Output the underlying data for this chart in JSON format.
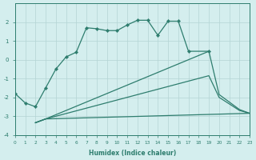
{
  "xlabel": "Humidex (Indice chaleur)",
  "color": "#2e7d6e",
  "bg_color": "#d4eeee",
  "grid_color": "#b4d4d4",
  "ylim": [
    -4,
    3
  ],
  "xlim": [
    0,
    23
  ],
  "line_upper_x": [
    0,
    1,
    2,
    3,
    4,
    5,
    6,
    7,
    8,
    9,
    10,
    11,
    12,
    13,
    14,
    15,
    16,
    17,
    19
  ],
  "line_upper_y": [
    -1.8,
    -2.3,
    -2.5,
    -1.5,
    -0.5,
    0.15,
    0.4,
    1.7,
    1.65,
    1.55,
    1.55,
    1.85,
    2.1,
    2.1,
    1.3,
    2.05,
    2.05,
    0.45,
    0.45
  ],
  "fan_line1_x": [
    2,
    3,
    19,
    20,
    22,
    23
  ],
  "fan_line1_y": [
    -3.35,
    -3.15,
    0.45,
    -1.85,
    -2.65,
    -2.85
  ],
  "fan_line2_x": [
    2,
    3,
    19,
    20,
    22,
    23
  ],
  "fan_line2_y": [
    -3.35,
    -3.15,
    -0.85,
    -2.0,
    -2.7,
    -2.85
  ],
  "fan_line3_x": [
    2,
    3,
    23
  ],
  "fan_line3_y": [
    -3.35,
    -3.15,
    -2.85
  ]
}
